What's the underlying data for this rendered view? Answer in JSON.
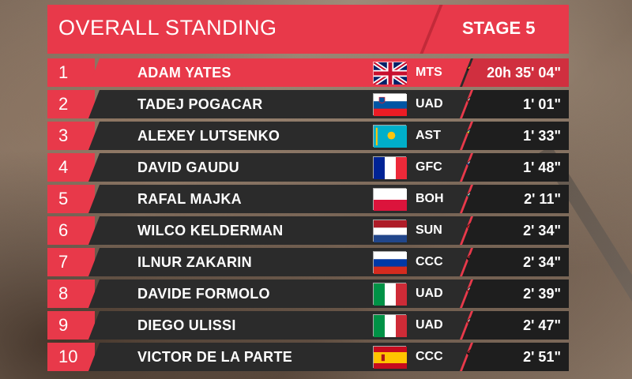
{
  "header": {
    "title": "OVERALL STANDING",
    "stage": "STAGE 5"
  },
  "colors": {
    "accent": "#e8394a",
    "row_bg": "#2b2b2b",
    "time_bg": "#1e1e1e"
  },
  "riders": [
    {
      "rank": "1",
      "name": "ADAM YATES",
      "flag": "gb-flag-icon",
      "team": "MTS",
      "jersey": "yellow-black-jersey-icon",
      "time": "20h 35' 04\""
    },
    {
      "rank": "2",
      "name": "TADEJ POGACAR",
      "flag": "slovenia-flag-icon",
      "team": "UAD",
      "jersey": "white-red-jersey-icon",
      "time": "1' 01\""
    },
    {
      "rank": "3",
      "name": "ALEXEY LUTSENKO",
      "flag": "kazakhstan-flag-icon",
      "team": "AST",
      "jersey": "light-blue-jersey-icon",
      "time": "1' 33\""
    },
    {
      "rank": "4",
      "name": "DAVID GAUDU",
      "flag": "france-flag-icon",
      "team": "GFC",
      "jersey": "blue-white-jersey-icon",
      "time": "1' 48\""
    },
    {
      "rank": "5",
      "name": "RAFAL MAJKA",
      "flag": "poland-flag-icon",
      "team": "BOH",
      "jersey": "teal-white-jersey-icon",
      "time": "2' 11\""
    },
    {
      "rank": "6",
      "name": "WILCO KELDERMAN",
      "flag": "netherlands-flag-icon",
      "team": "SUN",
      "jersey": "red-jersey-icon",
      "time": "2' 34\""
    },
    {
      "rank": "7",
      "name": "ILNUR ZAKARIN",
      "flag": "russia-flag-icon",
      "team": "CCC",
      "jersey": "red-black-jersey-icon",
      "time": "2' 34\""
    },
    {
      "rank": "8",
      "name": "DAVIDE FORMOLO",
      "flag": "italy-flag-icon",
      "team": "UAD",
      "jersey": "white-red-jersey-icon",
      "time": "2' 39\""
    },
    {
      "rank": "9",
      "name": "DIEGO ULISSI",
      "flag": "italy-flag-icon",
      "team": "UAD",
      "jersey": "white-red-jersey-icon",
      "time": "2' 47\""
    },
    {
      "rank": "10",
      "name": "VICTOR DE LA PARTE",
      "flag": "spain-flag-icon",
      "team": "CCC",
      "jersey": "red-black-jersey-icon",
      "time": "2' 51\""
    }
  ]
}
